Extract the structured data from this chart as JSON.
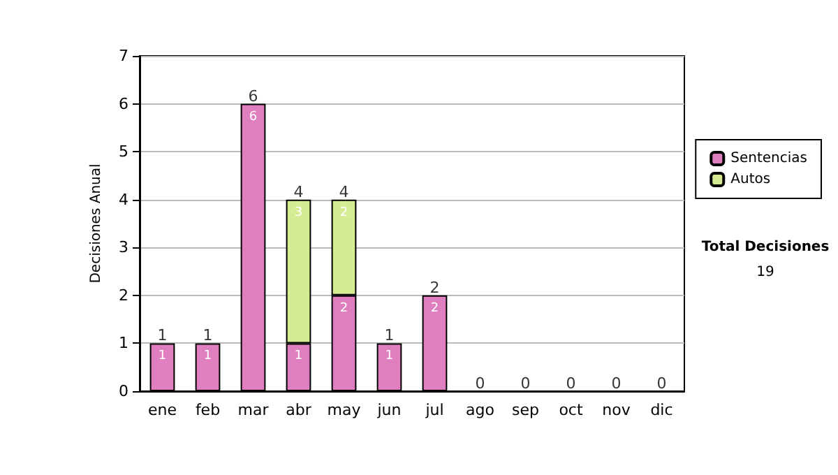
{
  "chart_data": {
    "type": "bar",
    "stacked": true,
    "ylabel": "Decisiones Anual",
    "categories": [
      "ene",
      "feb",
      "mar",
      "abr",
      "may",
      "jun",
      "jul",
      "ago",
      "sep",
      "oct",
      "nov",
      "dic"
    ],
    "series": [
      {
        "name": "Sentencias",
        "color": "#e07fc0",
        "values": [
          1,
          1,
          6,
          1,
          2,
          1,
          2,
          0,
          0,
          0,
          0,
          0
        ],
        "value_labels": [
          "1",
          "1",
          "6",
          "1",
          "2",
          "1",
          "2",
          null,
          null,
          null,
          null,
          null
        ]
      },
      {
        "name": "Autos",
        "color": "#d6ec94",
        "values": [
          0,
          0,
          0,
          3,
          2,
          0,
          0,
          0,
          0,
          0,
          0,
          0
        ],
        "value_labels": [
          null,
          null,
          null,
          "3",
          "2",
          null,
          null,
          null,
          null,
          null,
          null,
          null
        ]
      }
    ],
    "totals": [
      "1",
      "1",
      "6",
      "4",
      "4",
      "1",
      "2",
      "0",
      "0",
      "0",
      "0",
      "0"
    ],
    "ylim": [
      0,
      7
    ],
    "yticks": [
      0,
      1,
      2,
      3,
      4,
      5,
      6,
      7
    ],
    "grid": "y",
    "legend": "right",
    "annotations": [
      "Total Decisiones",
      "19"
    ]
  }
}
